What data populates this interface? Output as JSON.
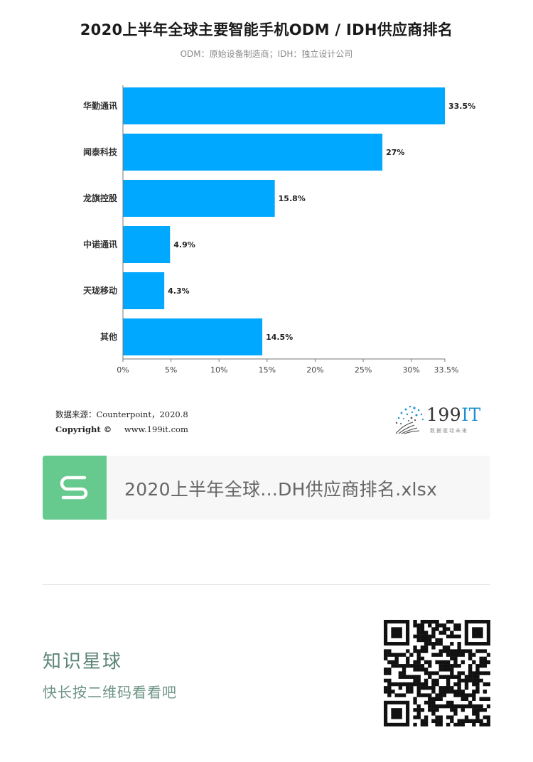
{
  "chart_data": {
    "type": "bar",
    "orientation": "horizontal",
    "title": "2020上半年全球主要智能手机ODM / IDH供应商排名",
    "subtitle": "ODM：原始设备制造商；IDH：独立设计公司",
    "categories": [
      "华勤通讯",
      "闻泰科技",
      "龙旗控股",
      "中诺通讯",
      "天珑移动",
      "其他"
    ],
    "values": [
      33.5,
      27,
      15.8,
      4.9,
      4.3,
      14.5
    ],
    "value_labels": [
      "33.5%",
      "27%",
      "15.8%",
      "4.9%",
      "4.3%",
      "14.5%"
    ],
    "xlim": [
      0,
      33.5
    ],
    "x_ticks": [
      0,
      5,
      10,
      15,
      20,
      25,
      30,
      33.5
    ],
    "x_tick_labels": [
      "0%",
      "5%",
      "10%",
      "15%",
      "20%",
      "25%",
      "30%",
      "33.5%"
    ],
    "bar_color": "#00a8ff",
    "grid": false,
    "legend": "none"
  },
  "footer": {
    "source": "数据来源：Counterpoint，2020.8",
    "copyright_label": "Copyright ©",
    "copyright_url": "www.199it.com"
  },
  "logo": {
    "brand_number": "199",
    "brand_letters": "IT",
    "tagline": "数据驱动未来",
    "icon": "dandelion-dots-icon"
  },
  "file": {
    "name": "2020上半年全球...DH供应商排名.xlsx",
    "icon": "spreadsheet-s-icon",
    "accent": "#66c98d"
  },
  "planet": {
    "title": "知识星球",
    "subtitle": "快长按二维码看看吧",
    "qr_icon": "qr-code-icon"
  }
}
